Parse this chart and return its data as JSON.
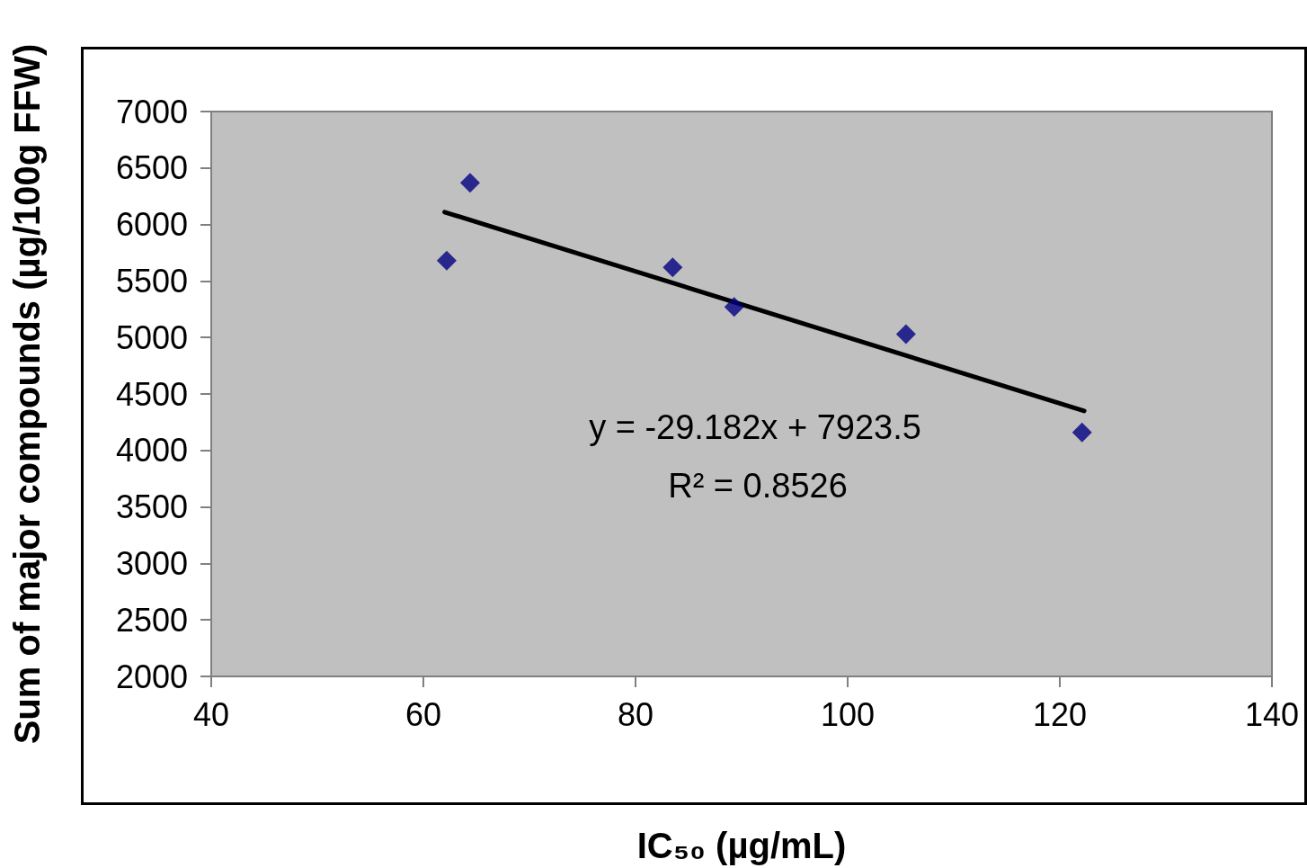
{
  "chart_data": {
    "type": "scatter",
    "xlabel": "IC₅₀ (µg/mL)",
    "ylabel": "Sum of major compounds (µg/100g FFW)",
    "series": [
      {
        "color": "#000080",
        "marker": "diamond",
        "x": [
          62.2,
          64.4,
          83.5,
          89.3,
          105.5,
          122.1
        ],
        "values": [
          5680,
          6370,
          5620,
          5270,
          5030,
          4160
        ]
      },
      {
        "type": "line",
        "color": "#000000",
        "marker": "none",
        "line_style": "solid",
        "x": [
          62.0,
          122.3
        ],
        "values": [
          6110,
          4350
        ]
      }
    ],
    "xlim": [
      40,
      140
    ],
    "xticks": [
      40,
      60,
      80,
      100,
      120,
      140
    ],
    "ylim": [
      2000,
      7000
    ],
    "yticks": [
      2000,
      2500,
      3000,
      3500,
      4000,
      4500,
      5000,
      5500,
      6000,
      6500,
      7000
    ],
    "grid": false,
    "annotations": [
      "y = -29.182x + 7923.5",
      "R² = 0.8526"
    ]
  }
}
